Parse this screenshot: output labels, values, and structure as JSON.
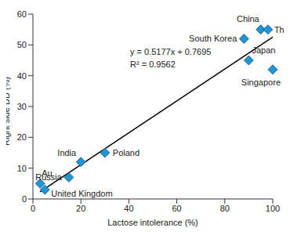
{
  "chart_data": {
    "type": "scatter",
    "x_label": "Lactose intolerance (%)",
    "y_label": "Right side DD (%)",
    "point_labels": [
      "Au",
      "United Kingdom",
      "Russia",
      "India",
      "Poland",
      "South Korea",
      "Japan",
      "China",
      "Thai",
      "Singapore"
    ],
    "x": [
      3,
      5,
      15,
      20,
      30,
      88,
      90,
      95,
      98,
      100
    ],
    "values": [
      5,
      3,
      7,
      12,
      15,
      52,
      45,
      55,
      55,
      42
    ],
    "color": "#1f96d3",
    "marker": "diamond",
    "xlim": [
      0,
      100
    ],
    "xticks": [
      0,
      20,
      40,
      60,
      80,
      100
    ],
    "ylim": [
      0,
      60
    ],
    "yticks": [
      0,
      10,
      20,
      30,
      40,
      50,
      60
    ],
    "grid": false,
    "trendline": {
      "equation": "y = 0.5177x + 0.7695",
      "r2": "R² = 0.9562",
      "slope": 0.5177,
      "intercept": 0.7695,
      "x": [
        3,
        100
      ],
      "color": "#000000"
    }
  }
}
